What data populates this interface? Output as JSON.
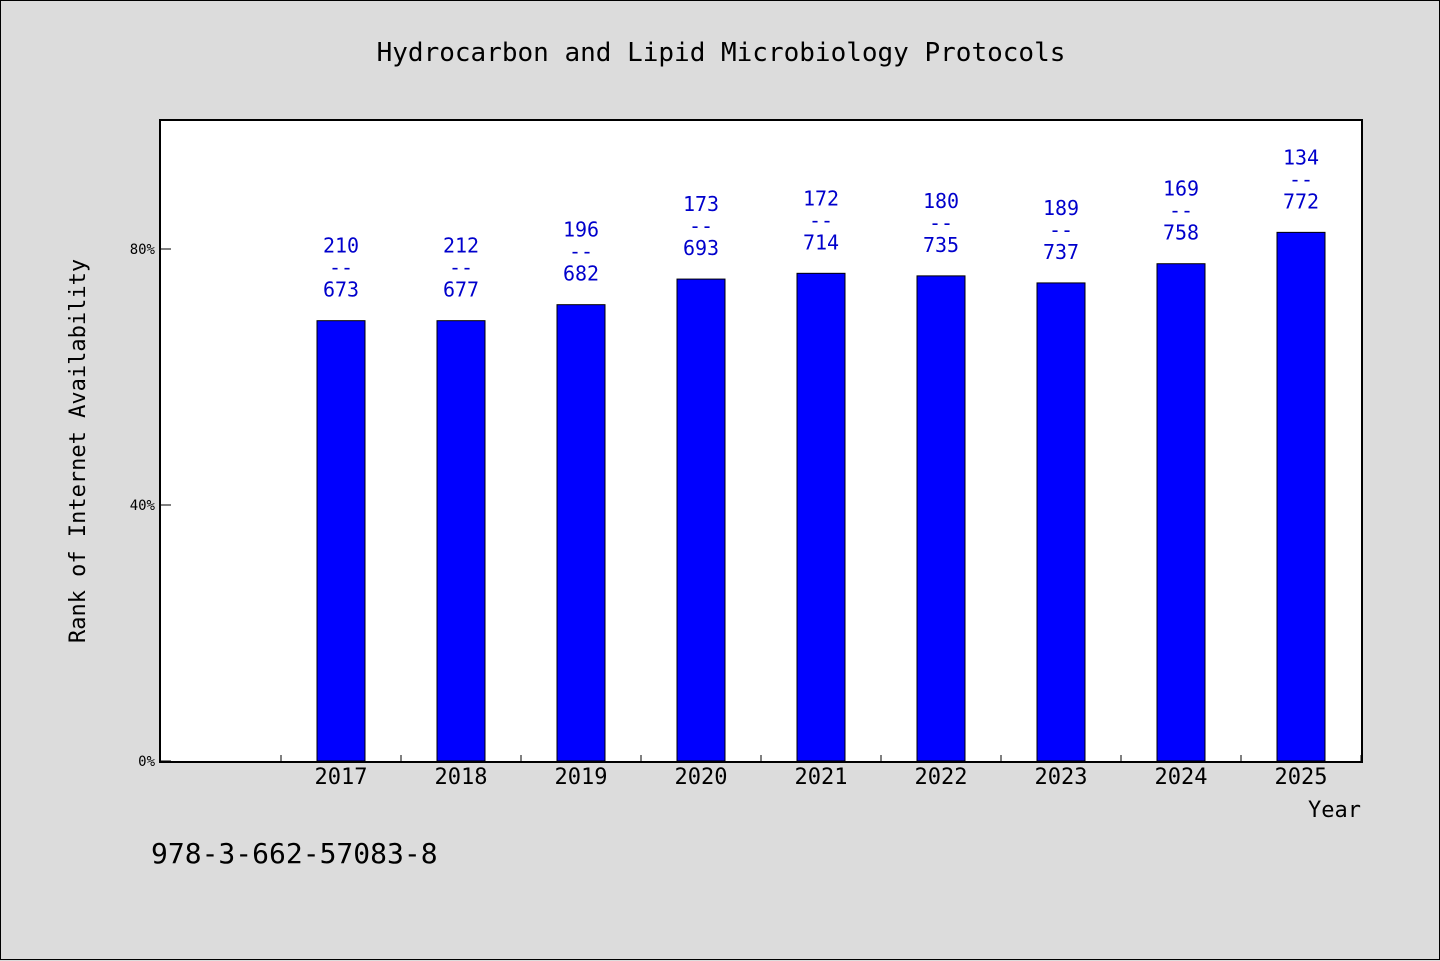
{
  "chart_data": {
    "type": "bar",
    "title": "Hydrocarbon and Lipid Microbiology Protocols",
    "xlabel": "Year",
    "ylabel": "Rank of Internet Availability",
    "categories": [
      "2017",
      "2018",
      "2019",
      "2020",
      "2021",
      "2022",
      "2023",
      "2024",
      "2025"
    ],
    "values": [
      68.8,
      68.8,
      71.3,
      75.3,
      76.2,
      75.8,
      74.7,
      77.7,
      82.6
    ],
    "labels": [
      {
        "top": "210",
        "sep": "--",
        "bottom": "673"
      },
      {
        "top": "212",
        "sep": "--",
        "bottom": "677"
      },
      {
        "top": "196",
        "sep": "--",
        "bottom": "682"
      },
      {
        "top": "173",
        "sep": "--",
        "bottom": "693"
      },
      {
        "top": "172",
        "sep": "--",
        "bottom": "714"
      },
      {
        "top": "180",
        "sep": "--",
        "bottom": "735"
      },
      {
        "top": "189",
        "sep": "--",
        "bottom": "737"
      },
      {
        "top": "169",
        "sep": "--",
        "bottom": "758"
      },
      {
        "top": "134",
        "sep": "--",
        "bottom": "772"
      }
    ],
    "yticks": [
      {
        "value": 0,
        "label": "0%"
      },
      {
        "value": 40,
        "label": "40%"
      },
      {
        "value": 80,
        "label": "80%"
      }
    ],
    "ylim": [
      0,
      100
    ],
    "grid": false,
    "bar_color": "#0000ff",
    "label_color": "#0000cc"
  },
  "footer": {
    "isbn": "978-3-662-57083-8"
  }
}
